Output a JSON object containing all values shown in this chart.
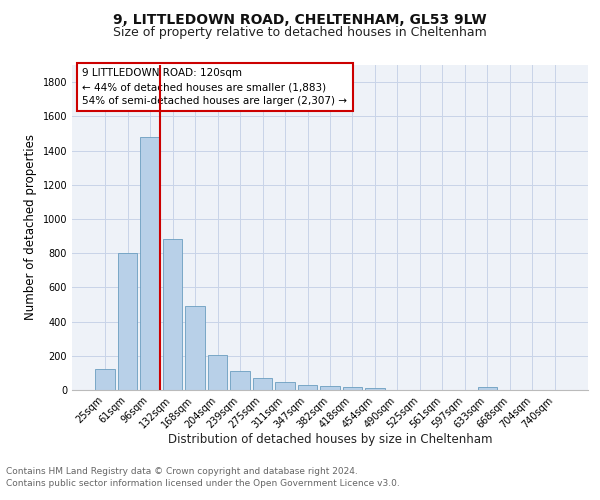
{
  "title": "9, LITTLEDOWN ROAD, CHELTENHAM, GL53 9LW",
  "subtitle": "Size of property relative to detached houses in Cheltenham",
  "xlabel": "Distribution of detached houses by size in Cheltenham",
  "ylabel": "Number of detached properties",
  "categories": [
    "25sqm",
    "61sqm",
    "96sqm",
    "132sqm",
    "168sqm",
    "204sqm",
    "239sqm",
    "275sqm",
    "311sqm",
    "347sqm",
    "382sqm",
    "418sqm",
    "454sqm",
    "490sqm",
    "525sqm",
    "561sqm",
    "597sqm",
    "633sqm",
    "668sqm",
    "704sqm",
    "740sqm"
  ],
  "values": [
    120,
    800,
    1480,
    880,
    490,
    205,
    110,
    70,
    48,
    32,
    25,
    18,
    14,
    0,
    0,
    0,
    0,
    15,
    0,
    0,
    0
  ],
  "bar_color": "#b8d0e8",
  "bar_edge_color": "#6a9ec0",
  "vline_color": "#cc0000",
  "annotation_text": "9 LITTLEDOWN ROAD: 120sqm\n← 44% of detached houses are smaller (1,883)\n54% of semi-detached houses are larger (2,307) →",
  "annotation_box_color": "#ffffff",
  "annotation_box_edge_color": "#cc0000",
  "ylim": [
    0,
    1900
  ],
  "yticks": [
    0,
    200,
    400,
    600,
    800,
    1000,
    1200,
    1400,
    1600,
    1800
  ],
  "grid_color": "#c8d4e8",
  "background_color": "#eef2f8",
  "footer_line1": "Contains HM Land Registry data © Crown copyright and database right 2024.",
  "footer_line2": "Contains public sector information licensed under the Open Government Licence v3.0.",
  "title_fontsize": 10,
  "subtitle_fontsize": 9,
  "axis_label_fontsize": 8.5,
  "tick_fontsize": 7,
  "annotation_fontsize": 7.5,
  "footer_fontsize": 6.5
}
